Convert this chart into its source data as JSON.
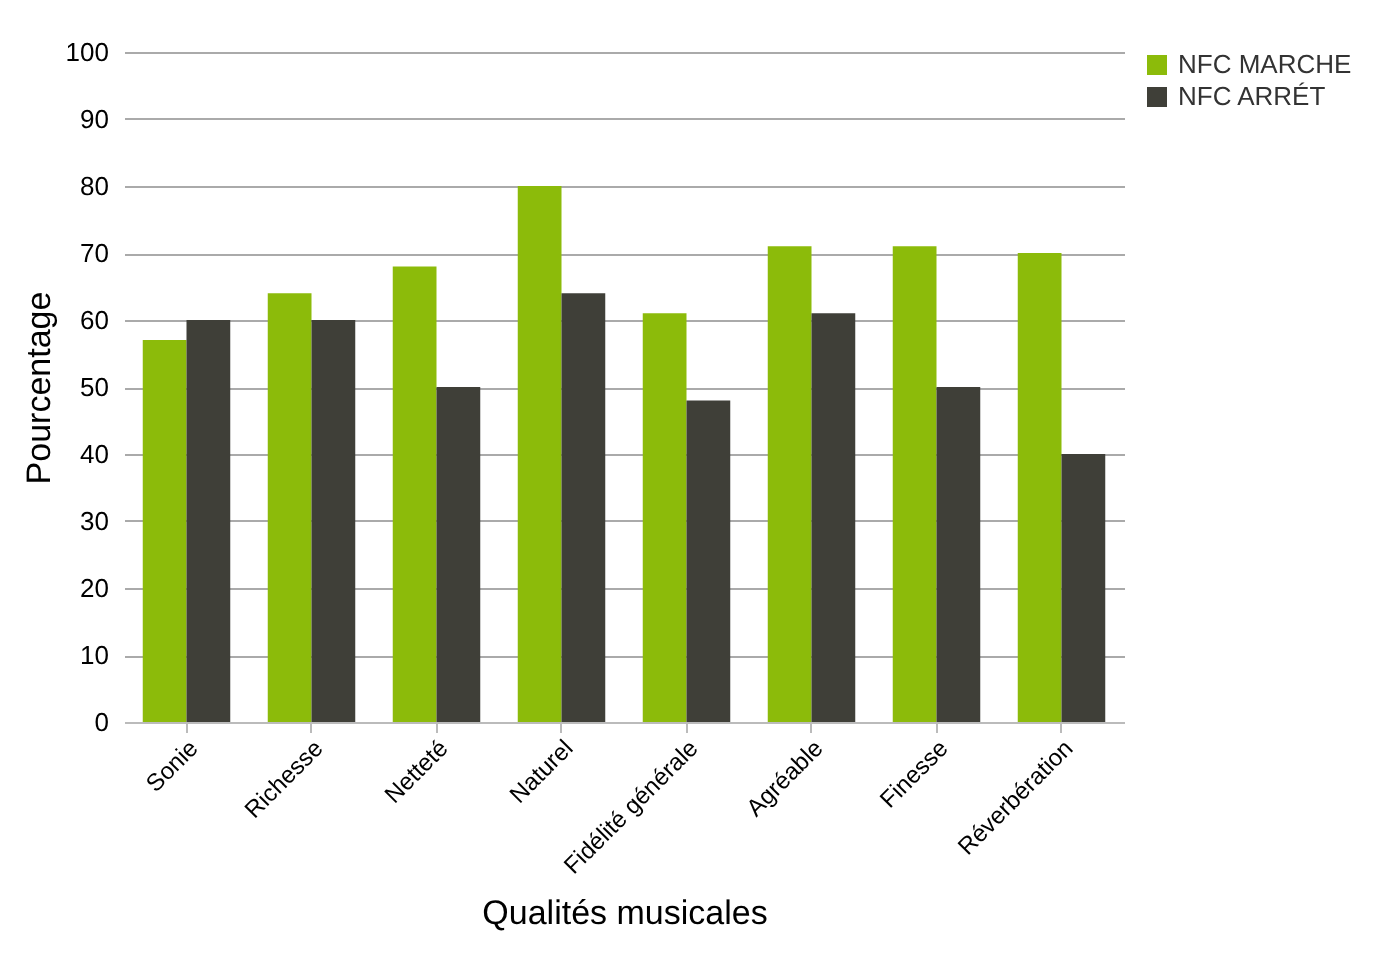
{
  "chart_data": {
    "type": "bar",
    "xlabel": "Qualités musicales",
    "ylabel": "Pourcentage",
    "categories": [
      "Sonie",
      "Richesse",
      "Netteté",
      "Naturel",
      "Fidélité générale",
      "Agréable",
      "Finesse",
      "Réverbération"
    ],
    "series": [
      {
        "name": "NFC MARCHE",
        "color": "#8cbb0a",
        "values": [
          57,
          64,
          68,
          80,
          61,
          71,
          71,
          70
        ]
      },
      {
        "name": "NFC ARRÉT",
        "color": "#3f3f38",
        "values": [
          60,
          60,
          50,
          64,
          48,
          61,
          50,
          40
        ]
      }
    ],
    "ylim": [
      0,
      100
    ],
    "yticks": [
      0,
      10,
      20,
      30,
      40,
      50,
      60,
      70,
      80,
      90,
      100
    ],
    "grid": "y",
    "legend": "right"
  }
}
